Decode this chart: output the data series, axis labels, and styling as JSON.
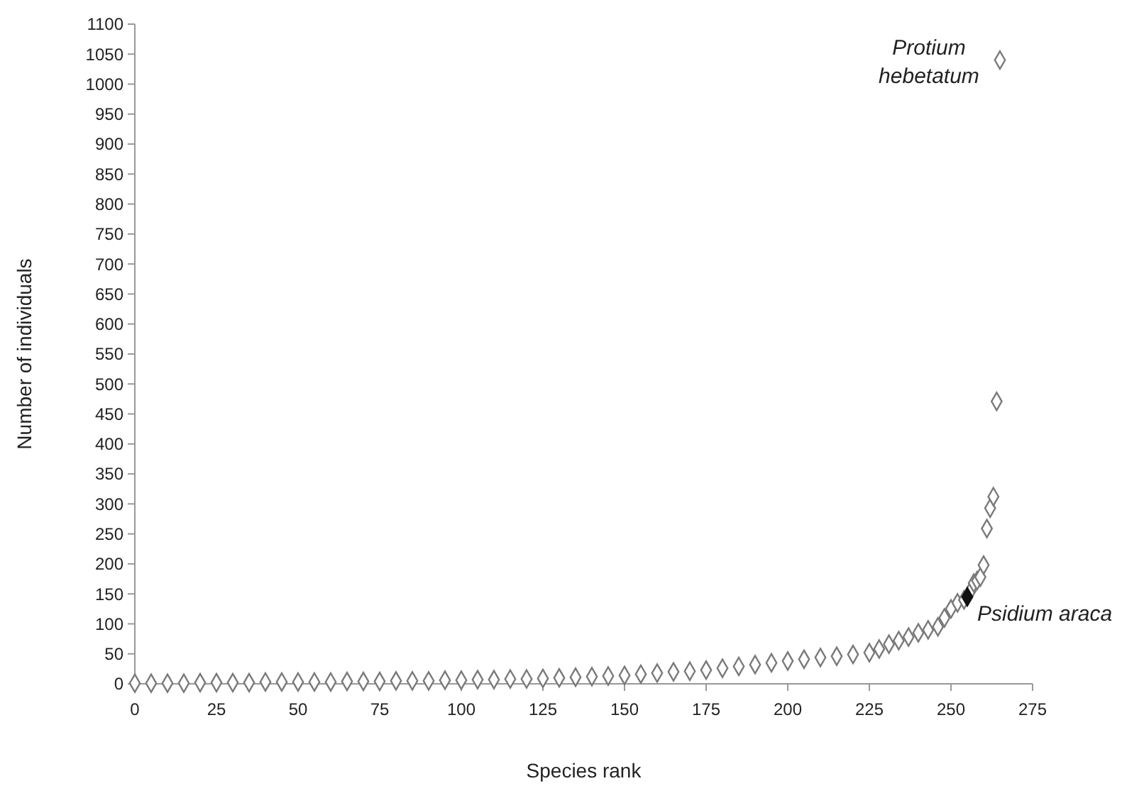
{
  "chart_data": {
    "type": "scatter",
    "xlabel": "Species rank",
    "ylabel": "Number of individuals",
    "xlim": [
      0,
      275
    ],
    "xticks": [
      0,
      25,
      50,
      75,
      100,
      125,
      150,
      175,
      200,
      225,
      250,
      275
    ],
    "ylim": [
      0,
      1100
    ],
    "yticks": [
      0,
      50,
      100,
      150,
      200,
      250,
      300,
      350,
      400,
      450,
      500,
      550,
      600,
      650,
      700,
      750,
      800,
      850,
      900,
      950,
      1000,
      1050,
      1100
    ],
    "grid": false,
    "marker": "diamond",
    "series": [
      {
        "color": "#7a7a7a",
        "x": [
          0,
          5,
          10,
          15,
          20,
          25,
          30,
          35,
          40,
          45,
          50,
          55,
          60,
          65,
          70,
          75,
          80,
          85,
          90,
          95,
          100,
          105,
          110,
          115,
          120,
          125,
          130,
          135,
          140,
          145,
          150,
          155,
          160,
          165,
          170,
          175,
          180,
          185,
          190,
          195,
          200,
          205,
          210,
          215,
          220,
          225,
          228,
          231,
          234,
          237,
          240,
          243,
          246,
          248,
          250,
          252,
          254,
          256,
          257,
          258,
          259,
          260,
          261,
          262,
          263,
          264,
          265
        ],
        "values": [
          1,
          1,
          1,
          1,
          2,
          2,
          2,
          2,
          3,
          3,
          3,
          3,
          3,
          4,
          4,
          4,
          5,
          5,
          5,
          6,
          6,
          7,
          7,
          8,
          8,
          9,
          10,
          11,
          12,
          13,
          14,
          16,
          18,
          20,
          21,
          23,
          26,
          29,
          32,
          35,
          38,
          41,
          44,
          46,
          49,
          52,
          58,
          66,
          72,
          78,
          85,
          90,
          95,
          110,
          125,
          135,
          140,
          155,
          168,
          172,
          178,
          198,
          259,
          293,
          312,
          471,
          1040
        ]
      },
      {
        "color": "#111111",
        "x": [
          255
        ],
        "values": [
          145
        ]
      }
    ],
    "annotations": [
      {
        "text": "Protium hebetatum",
        "x": 265,
        "y": 1040
      },
      {
        "text": "Psidium araca",
        "x": 255,
        "y": 145
      }
    ]
  }
}
